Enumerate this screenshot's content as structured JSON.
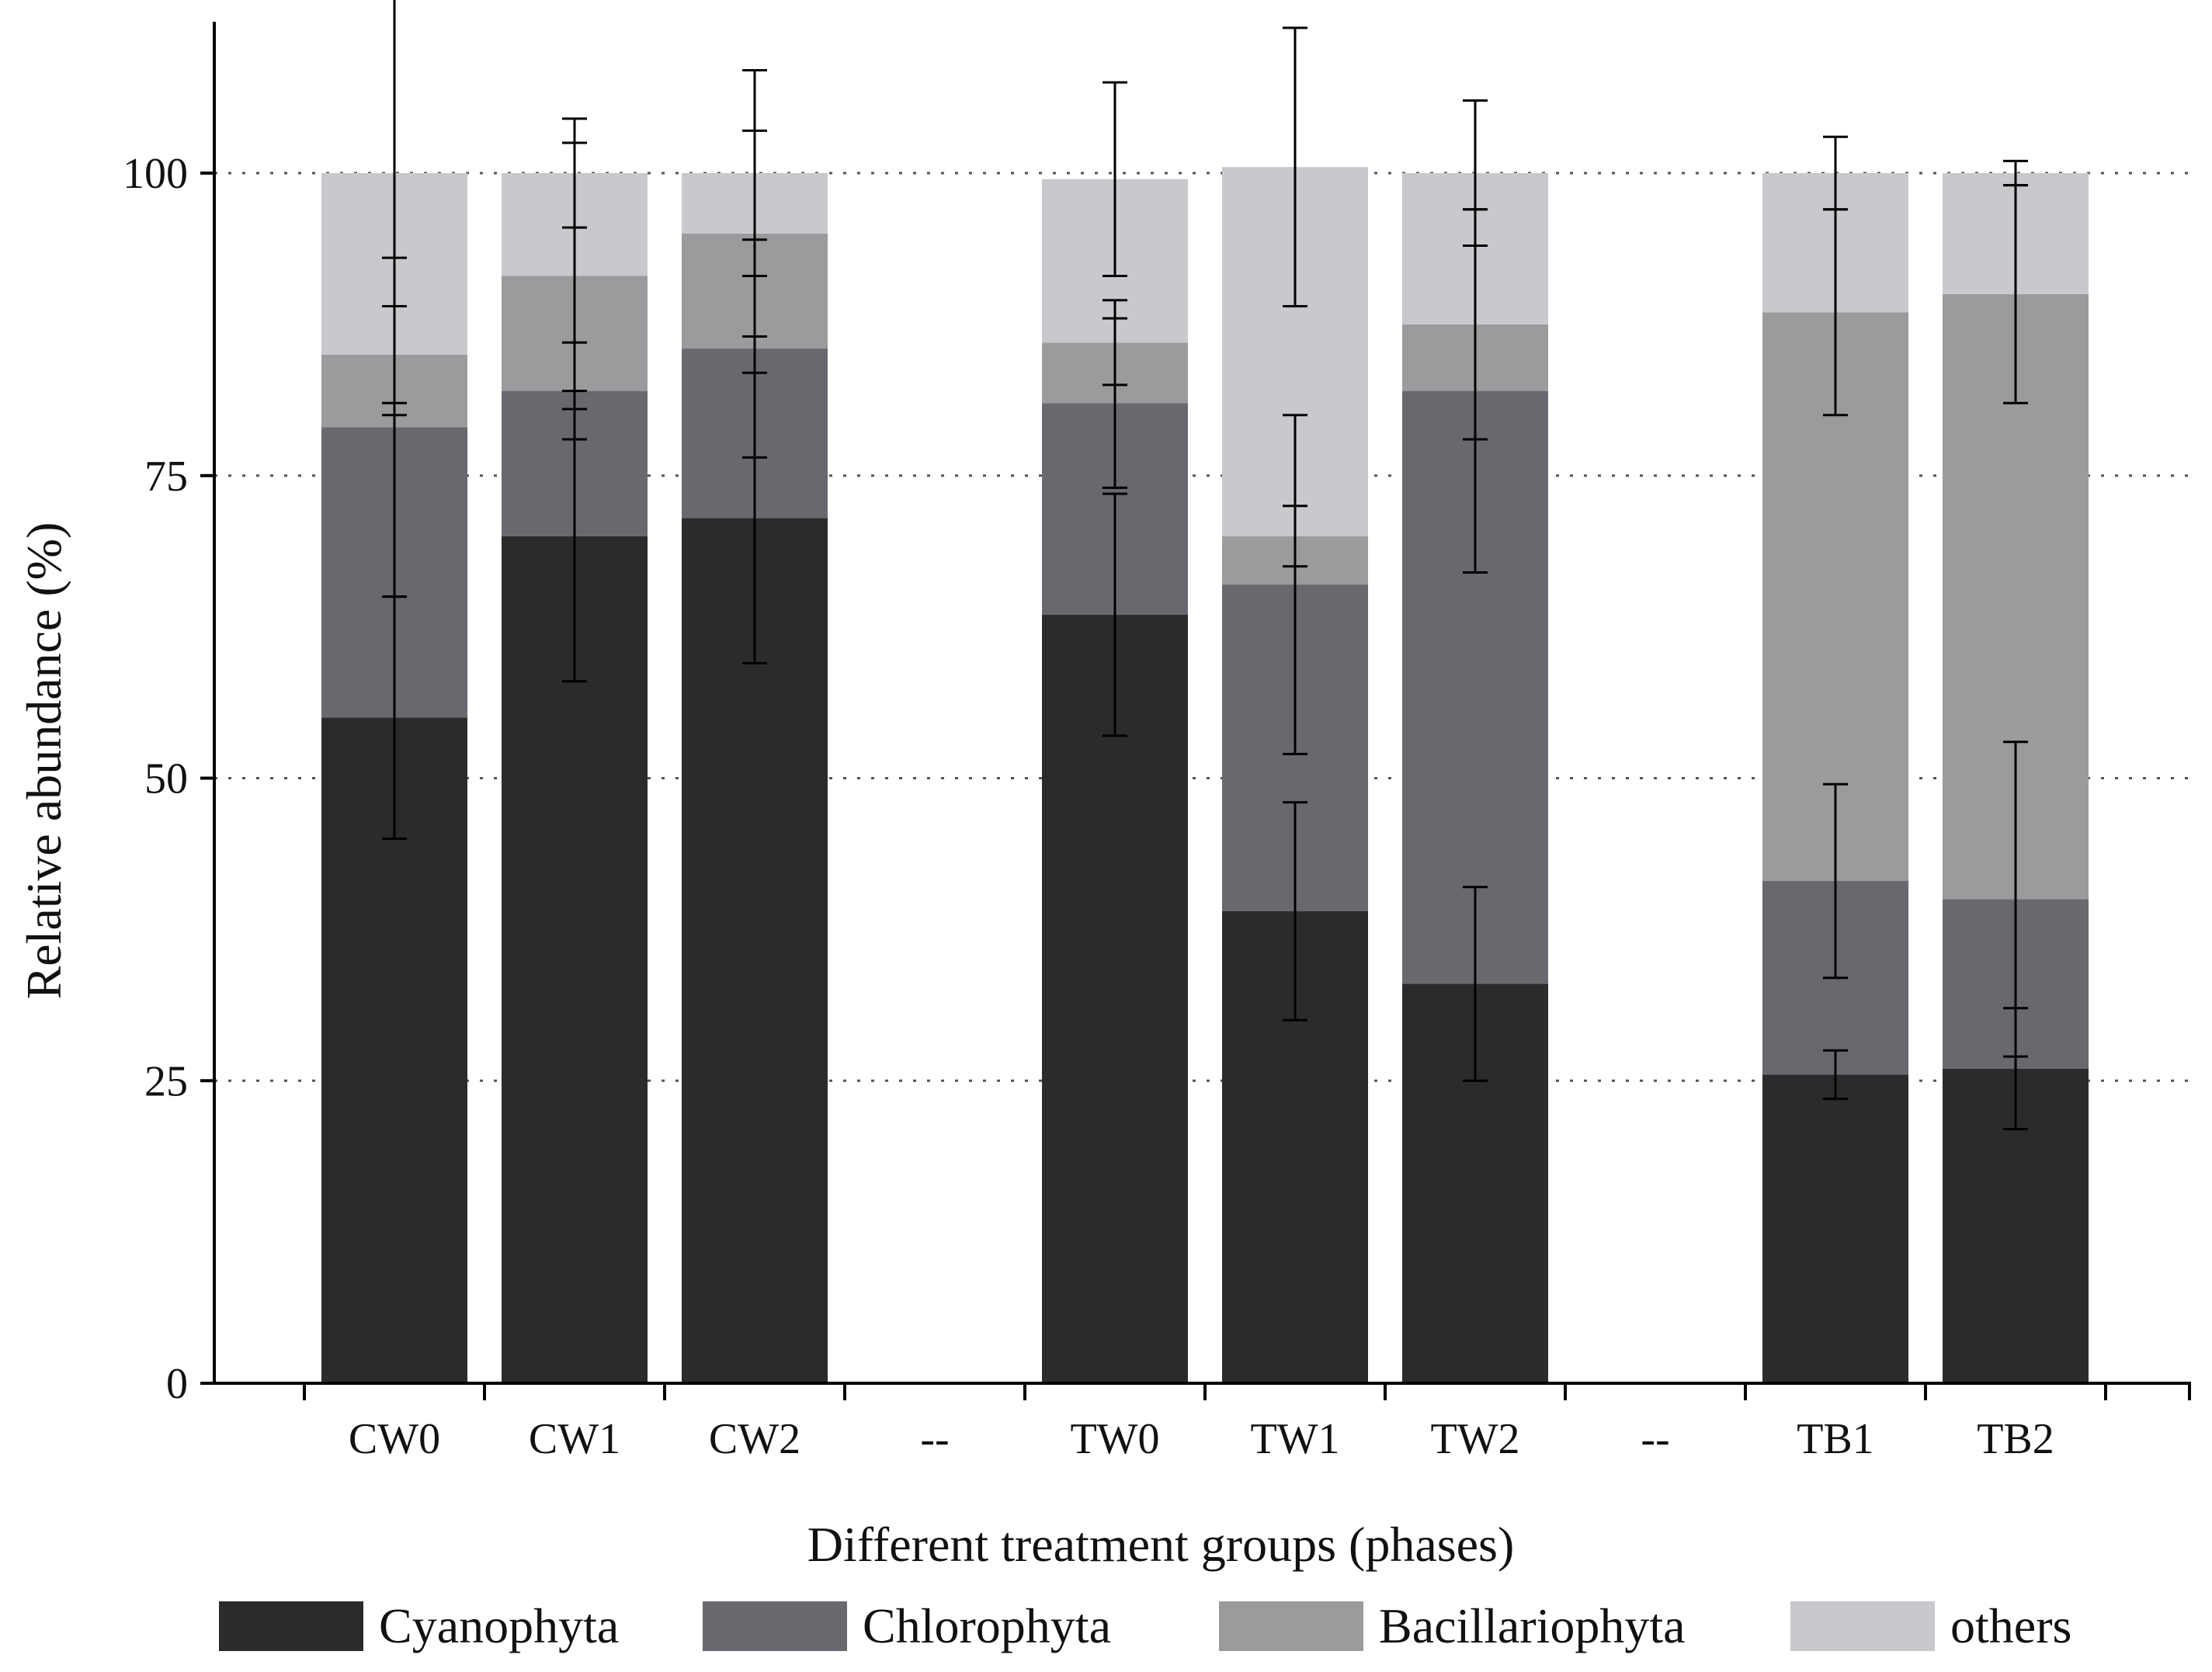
{
  "chart_data": {
    "type": "bar",
    "stacked": true,
    "title": "",
    "xlabel": "Different treatment groups (phases)",
    "ylabel": "Relative abundance (%)",
    "ylim": [
      0,
      112
    ],
    "yticks": [
      0,
      25,
      50,
      75,
      100
    ],
    "ytick_labels": [
      "0",
      "25",
      "50",
      "75",
      "100"
    ],
    "grid": "dotted horizontal at 25, 50, 75, 100",
    "categories": [
      "CW0",
      "CW1",
      "CW2",
      "--",
      "TW0",
      "TW1",
      "TW2",
      "--",
      "TB1",
      "TB2"
    ],
    "category_is_bar": [
      true,
      true,
      true,
      false,
      true,
      true,
      true,
      false,
      true,
      true
    ],
    "series": [
      {
        "name": "Cyanophyta",
        "color": "#2b2b2d",
        "values": [
          55.0,
          70.0,
          71.5,
          null,
          63.5,
          39.0,
          33.0,
          null,
          25.5,
          26.0
        ],
        "error": [
          10.0,
          12.0,
          12.0,
          null,
          10.0,
          9.0,
          8.0,
          null,
          2.0,
          5.0
        ]
      },
      {
        "name": "Chlorophyta",
        "color": "#68686f",
        "values": [
          24.0,
          12.0,
          14.0,
          null,
          17.5,
          27.0,
          49.0,
          null,
          16.0,
          14.0
        ],
        "error": [
          14.0,
          4.0,
          9.0,
          null,
          7.0,
          14.0,
          15.0,
          null,
          8.0,
          13.0
        ]
      },
      {
        "name": "Bacillariophyta",
        "color": "#9b9b9e",
        "values": [
          6.0,
          9.5,
          9.5,
          null,
          5.0,
          4.0,
          5.5,
          null,
          47.0,
          50.0
        ],
        "error": [
          4.0,
          11.0,
          8.5,
          null,
          3.5,
          2.5,
          9.5,
          null,
          8.5,
          9.0
        ]
      },
      {
        "name": "others",
        "color": "#c9c8cd",
        "values": [
          15.0,
          8.5,
          5.0,
          null,
          13.5,
          30.5,
          12.5,
          null,
          11.5,
          10.0
        ],
        "error": [
          20.0,
          4.5,
          8.5,
          null,
          8.0,
          11.5,
          6.0,
          null,
          3.0,
          1.0
        ]
      }
    ],
    "legend": {
      "placement": "bottom",
      "entries": [
        "Cyanophyta",
        "Chlorophyta",
        "Bacillariophyta",
        "others"
      ]
    }
  }
}
